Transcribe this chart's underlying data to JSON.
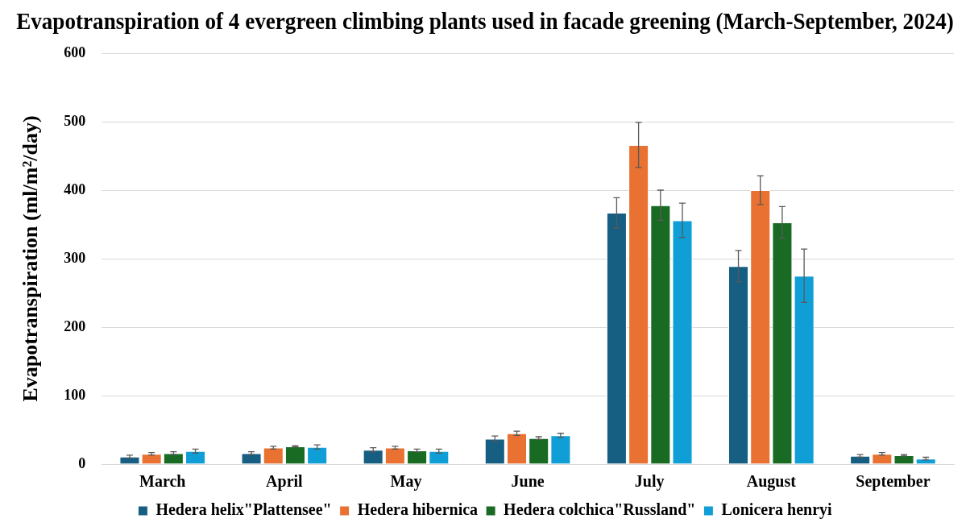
{
  "chart_data": {
    "type": "bar",
    "title": "Evapotranspiration of 4 evergreen climbing plants used in facade greening (March-September, 2024)",
    "ylabel": "Evapotranspiration (ml/m²/day)",
    "categories": [
      "March",
      "April",
      "May",
      "June",
      "July",
      "August",
      "September"
    ],
    "series": [
      {
        "name": "Hedera helix\"Plattensee\"",
        "color": "#175e83",
        "values": [
          11,
          16,
          21,
          37,
          367,
          289,
          12
        ],
        "errors": [
          2,
          2,
          3,
          4,
          22,
          23,
          2
        ]
      },
      {
        "name": "Hedera hibernica",
        "color": "#e97132",
        "values": [
          15,
          24,
          24,
          45,
          466,
          400,
          15
        ],
        "errors": [
          2,
          2,
          2,
          3,
          33,
          21,
          2
        ]
      },
      {
        "name": "Hedera colchica\"Russland\"",
        "color": "#196b24",
        "values": [
          16,
          26,
          20,
          38,
          378,
          353,
          13
        ],
        "errors": [
          2,
          1,
          2,
          2,
          22,
          23,
          1
        ]
      },
      {
        "name": "Lonicera henryi",
        "color": "#0f9ed5",
        "values": [
          19,
          25,
          19,
          42,
          356,
          275,
          8
        ],
        "errors": [
          3,
          3,
          3,
          3,
          25,
          39,
          2
        ]
      }
    ],
    "ylim": [
      0,
      600
    ],
    "yticks": [
      0,
      100,
      200,
      300,
      400,
      500,
      600
    ],
    "grid": "y",
    "legend": "bottom"
  }
}
